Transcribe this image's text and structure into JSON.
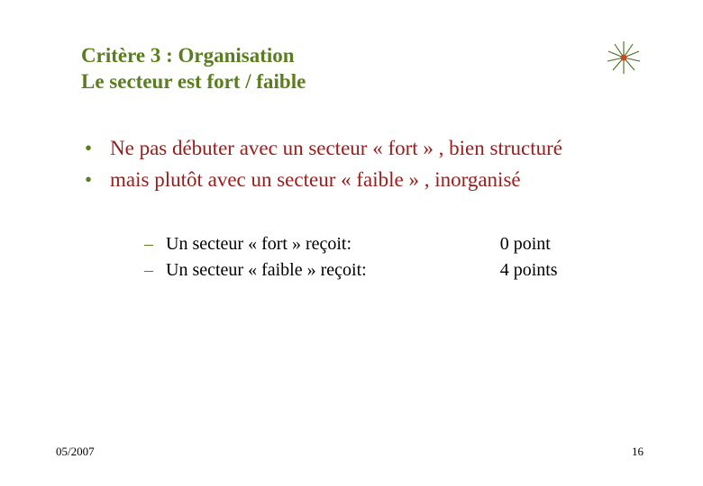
{
  "title": {
    "line1": "Critère 3 : Organisation",
    "line2": "Le secteur est fort / faible",
    "color": "#5a7d1f",
    "fontsize": 23
  },
  "bullets": {
    "items": [
      "Ne pas débuter avec un secteur « fort » , bien structuré",
      "mais plutôt avec un secteur « faible » , inorganisé"
    ],
    "text_color": "#9a1c1c",
    "bullet_color": "#5a7d1f",
    "fontsize": 23
  },
  "details": {
    "labels": [
      "Un secteur « fort » reçoit:",
      "Un secteur « faible » reçoit:"
    ],
    "points": [
      "0 point",
      "4 points"
    ],
    "text_color": "#000000",
    "dash_color": "#5a7d1f",
    "fontsize": 20
  },
  "footer": {
    "date": "05/2007",
    "page": "16",
    "color": "#000000",
    "fontsize": 13
  },
  "logo": {
    "center_color": "#c9482a",
    "ray_color": "#4a6b1a"
  },
  "background_color": "#ffffff"
}
